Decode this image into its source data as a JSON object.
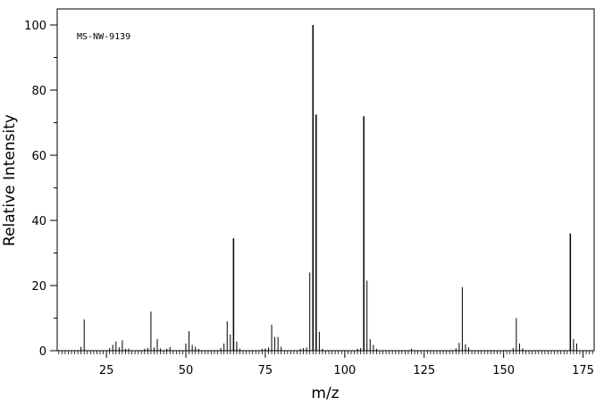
{
  "chart_data": {
    "type": "bar",
    "annotation": "MS-NW-9139",
    "xlabel": "m/z",
    "ylabel": "Relative Intensity",
    "xlim": [
      9.5,
      178.5
    ],
    "ylim": [
      0,
      100
    ],
    "xticks": [
      25,
      50,
      75,
      100,
      125,
      150,
      175
    ],
    "yticks": [
      0,
      20,
      40,
      60,
      80,
      100
    ],
    "grid": false,
    "peaks": [
      {
        "mz": 17,
        "intensity": 1.2
      },
      {
        "mz": 18,
        "intensity": 9.6
      },
      {
        "mz": 26,
        "intensity": 0.8
      },
      {
        "mz": 27,
        "intensity": 1.8
      },
      {
        "mz": 28,
        "intensity": 2.8
      },
      {
        "mz": 29,
        "intensity": 1.0
      },
      {
        "mz": 30,
        "intensity": 3.2
      },
      {
        "mz": 31,
        "intensity": 0.6
      },
      {
        "mz": 32,
        "intensity": 0.7
      },
      {
        "mz": 37,
        "intensity": 0.6
      },
      {
        "mz": 38,
        "intensity": 0.9
      },
      {
        "mz": 39,
        "intensity": 12.0
      },
      {
        "mz": 40,
        "intensity": 1.0
      },
      {
        "mz": 41,
        "intensity": 3.6
      },
      {
        "mz": 42,
        "intensity": 0.7
      },
      {
        "mz": 44,
        "intensity": 0.6
      },
      {
        "mz": 45,
        "intensity": 1.1
      },
      {
        "mz": 50,
        "intensity": 2.2
      },
      {
        "mz": 51,
        "intensity": 6.0
      },
      {
        "mz": 52,
        "intensity": 1.8
      },
      {
        "mz": 53,
        "intensity": 1.2
      },
      {
        "mz": 54,
        "intensity": 0.6
      },
      {
        "mz": 61,
        "intensity": 0.8
      },
      {
        "mz": 62,
        "intensity": 2.2
      },
      {
        "mz": 63,
        "intensity": 9.0
      },
      {
        "mz": 64,
        "intensity": 5.0
      },
      {
        "mz": 65,
        "intensity": 34.5
      },
      {
        "mz": 66,
        "intensity": 2.8
      },
      {
        "mz": 67,
        "intensity": 0.6
      },
      {
        "mz": 74,
        "intensity": 0.6
      },
      {
        "mz": 75,
        "intensity": 0.7
      },
      {
        "mz": 76,
        "intensity": 1.0
      },
      {
        "mz": 77,
        "intensity": 8.0
      },
      {
        "mz": 78,
        "intensity": 4.2
      },
      {
        "mz": 79,
        "intensity": 4.2
      },
      {
        "mz": 80,
        "intensity": 1.2
      },
      {
        "mz": 86,
        "intensity": 0.6
      },
      {
        "mz": 87,
        "intensity": 0.8
      },
      {
        "mz": 88,
        "intensity": 1.0
      },
      {
        "mz": 89,
        "intensity": 24.0
      },
      {
        "mz": 90,
        "intensity": 100
      },
      {
        "mz": 91,
        "intensity": 72.5
      },
      {
        "mz": 92,
        "intensity": 5.8
      },
      {
        "mz": 93,
        "intensity": 0.6
      },
      {
        "mz": 104,
        "intensity": 0.6
      },
      {
        "mz": 105,
        "intensity": 0.8
      },
      {
        "mz": 106,
        "intensity": 72.0
      },
      {
        "mz": 107,
        "intensity": 21.5
      },
      {
        "mz": 108,
        "intensity": 3.5
      },
      {
        "mz": 109,
        "intensity": 1.8
      },
      {
        "mz": 110,
        "intensity": 0.6
      },
      {
        "mz": 121,
        "intensity": 0.6
      },
      {
        "mz": 135,
        "intensity": 0.7
      },
      {
        "mz": 136,
        "intensity": 2.4
      },
      {
        "mz": 137,
        "intensity": 19.5
      },
      {
        "mz": 138,
        "intensity": 2.0
      },
      {
        "mz": 139,
        "intensity": 1.0
      },
      {
        "mz": 153,
        "intensity": 0.8
      },
      {
        "mz": 154,
        "intensity": 10.0
      },
      {
        "mz": 155,
        "intensity": 2.2
      },
      {
        "mz": 156,
        "intensity": 0.7
      },
      {
        "mz": 171,
        "intensity": 36.0
      },
      {
        "mz": 172,
        "intensity": 3.6
      },
      {
        "mz": 173,
        "intensity": 2.2
      }
    ]
  }
}
